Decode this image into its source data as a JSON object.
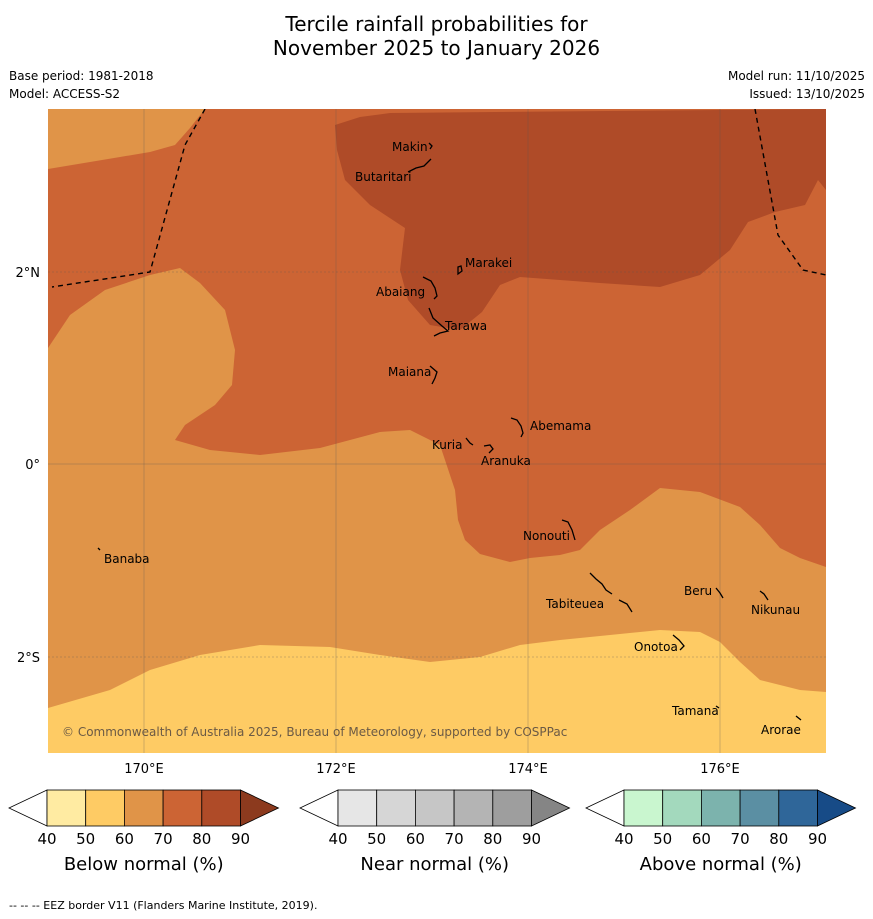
{
  "title": {
    "line1": "Tercile rainfall probabilities for",
    "line2": "November 2025 to January 2026"
  },
  "meta": {
    "base_period": "Base period: 1981-2018",
    "model": "Model: ACCESS-S2",
    "model_run": "Model run: 11/10/2025",
    "issued": "Issued: 13/10/2025"
  },
  "map": {
    "copyright": "© Commonwealth of Australia 2025, Bureau of Meteorology, supported by COSPPac",
    "lon_ticks": [
      "170°E",
      "172°E",
      "174°E",
      "176°E"
    ],
    "lat_ticks": [
      "2°N",
      "0°",
      "2°S"
    ],
    "islands": {
      "makin": "Makin",
      "butaritari": "Butaritari",
      "marakei": "Marakei",
      "abaiang": "Abaiang",
      "tarawa": "Tarawa",
      "maiana": "Maiana",
      "abemama": "Abemama",
      "kuria": "Kuria",
      "aranuka": "Aranuka",
      "nonouti": "Nonouti",
      "banaba": "Banaba",
      "beru": "Beru",
      "tabiteuea": "Tabiteuea",
      "nikunau": "Nikunau",
      "onotoa": "Onotoa",
      "tamana": "Tamana",
      "arorae": "Arorae"
    },
    "colors": {
      "below_40": "#ffffff",
      "below_50": "#ffe8a0",
      "below_60": "#fecb64",
      "below_70": "#e09448",
      "below_80": "#cc6434",
      "below_90": "#af4b28",
      "below_max": "#8c3a1e"
    }
  },
  "colorbars": {
    "below": {
      "title": "Below normal (%)",
      "ticks": [
        "40",
        "50",
        "60",
        "70",
        "80",
        "90"
      ],
      "colors": [
        "#ffffff",
        "#ffeba2",
        "#fecb64",
        "#e09448",
        "#cc6434",
        "#af4b28",
        "#8c3a1e"
      ]
    },
    "near": {
      "title": "Near normal (%)",
      "ticks": [
        "40",
        "50",
        "60",
        "70",
        "80",
        "90"
      ],
      "colors": [
        "#ffffff",
        "#e6e6e6",
        "#d6d6d6",
        "#c6c6c6",
        "#b4b4b4",
        "#9e9e9e",
        "#858585"
      ]
    },
    "above": {
      "title": "Above normal (%)",
      "ticks": [
        "40",
        "50",
        "60",
        "70",
        "80",
        "90"
      ],
      "colors": [
        "#ffffff",
        "#c9f6cf",
        "#a3d9bd",
        "#7cb3ad",
        "#5b8fa3",
        "#2f6699",
        "#174b87"
      ]
    }
  },
  "footer": "--  --  -- EEZ border V11 (Flanders Marine Institute, 2019)."
}
